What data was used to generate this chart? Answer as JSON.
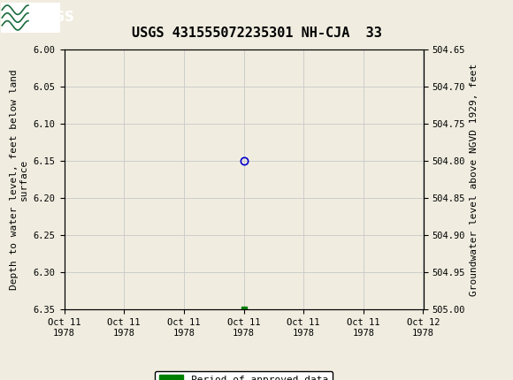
{
  "title": "USGS 431555072235301 NH-CJA  33",
  "title_fontsize": 11,
  "header_color": "#1a6b3c",
  "bg_color": "#f0ede0",
  "plot_bg_color": "#f0ede0",
  "left_ylabel": "Depth to water level, feet below land\nsurface",
  "right_ylabel": "Groundwater level above NGVD 1929, feet",
  "ylim_left": [
    6.0,
    6.35
  ],
  "ylim_right": [
    505.0,
    504.65
  ],
  "left_yticks": [
    6.0,
    6.05,
    6.1,
    6.15,
    6.2,
    6.25,
    6.3,
    6.35
  ],
  "right_yticks": [
    505.0,
    504.95,
    504.9,
    504.85,
    504.8,
    504.75,
    504.7,
    504.65
  ],
  "right_ytick_labels": [
    "505.00",
    "504.95",
    "504.90",
    "504.85",
    "504.80",
    "504.75",
    "504.70",
    "504.65"
  ],
  "xlim": [
    0,
    6
  ],
  "xtick_labels": [
    "Oct 11\n1978",
    "Oct 11\n1978",
    "Oct 11\n1978",
    "Oct 11\n1978",
    "Oct 11\n1978",
    "Oct 11\n1978",
    "Oct 12\n1978"
  ],
  "xtick_positions": [
    0,
    1,
    2,
    3,
    4,
    5,
    6
  ],
  "data_point_x": 3,
  "data_point_y": 6.15,
  "data_point_color": "#0000cc",
  "approved_marker_x": 3,
  "approved_marker_y": 6.35,
  "approved_marker_color": "#008000",
  "legend_label": "Period of approved data",
  "font_family": "monospace",
  "grid_color": "#cccccc",
  "axis_label_fontsize": 8,
  "tick_fontsize": 7.5
}
